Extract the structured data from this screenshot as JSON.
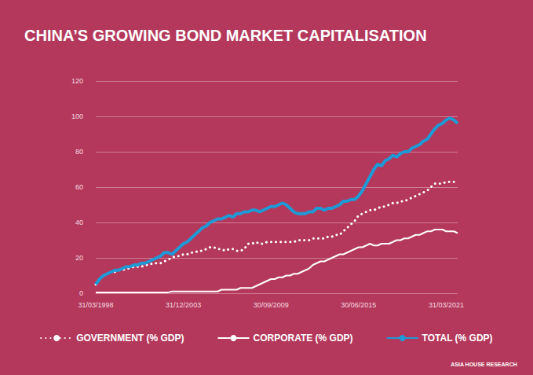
{
  "chart_data": {
    "type": "line",
    "title": "CHINA’S GROWING BOND MARKET CAPITALISATION",
    "annotations": [
      "ASIA HOUSE RESEARCH"
    ],
    "categories": [
      "31/03/1998",
      null,
      null,
      null,
      null,
      null,
      null,
      null,
      null,
      null,
      null,
      null,
      null,
      null,
      null,
      null,
      null,
      null,
      null,
      null,
      null,
      null,
      null,
      "31/12/2003",
      null,
      null,
      null,
      null,
      null,
      null,
      null,
      null,
      null,
      null,
      null,
      null,
      null,
      null,
      null,
      null,
      null,
      null,
      null,
      null,
      null,
      null,
      "30/09/2009",
      null,
      null,
      null,
      null,
      null,
      null,
      null,
      null,
      null,
      null,
      null,
      null,
      null,
      null,
      null,
      null,
      null,
      null,
      null,
      null,
      null,
      null,
      "30/06/2015",
      null,
      null,
      null,
      null,
      null,
      null,
      null,
      null,
      null,
      null,
      null,
      null,
      null,
      null,
      null,
      null,
      null,
      null,
      null,
      null,
      null,
      null,
      "31/03/2021",
      null,
      null,
      null
    ],
    "series": [
      {
        "name": "GOVERNMENT (% GDP)",
        "color": "#ffffff",
        "line_style": "dotted",
        "values": [
          5,
          8,
          10,
          11,
          12,
          12,
          13,
          13,
          14,
          14,
          15,
          15,
          15,
          16,
          16,
          17,
          17,
          17,
          18,
          19,
          20,
          21,
          21,
          22,
          22,
          23,
          23,
          24,
          24,
          25,
          26,
          26,
          25,
          25,
          24,
          25,
          25,
          24,
          24,
          25,
          28,
          28,
          29,
          28,
          28,
          29,
          29,
          29,
          29,
          29,
          29,
          29,
          29,
          30,
          30,
          30,
          30,
          31,
          31,
          31,
          31,
          32,
          32,
          33,
          33,
          35,
          37,
          39,
          41,
          44,
          45,
          46,
          47,
          47,
          48,
          49,
          49,
          50,
          51,
          51,
          52,
          52,
          53,
          54,
          55,
          56,
          57,
          58,
          60,
          62,
          62,
          62,
          63,
          63,
          63,
          63
        ]
      },
      {
        "name": "CORPORATE (% GDP)",
        "color": "#ffffff",
        "line_style": "solid",
        "values": [
          0.5,
          0.5,
          0.5,
          0.5,
          0.5,
          0.5,
          0.5,
          0.5,
          0.5,
          0.5,
          0.5,
          0.5,
          0.5,
          0.5,
          0.5,
          0.5,
          0.5,
          0.5,
          0.5,
          0.5,
          1,
          1,
          1,
          1,
          1,
          1,
          1,
          1,
          1,
          1,
          1,
          1,
          1,
          2,
          2,
          2,
          2,
          2,
          3,
          3,
          3,
          3,
          4,
          5,
          6,
          7,
          8,
          8,
          9,
          9,
          10,
          10,
          11,
          11,
          12,
          13,
          14,
          16,
          17,
          18,
          18,
          19,
          20,
          21,
          22,
          22,
          23,
          24,
          25,
          26,
          26,
          27,
          28,
          27,
          27,
          28,
          28,
          28,
          29,
          30,
          30,
          31,
          31,
          32,
          33,
          33,
          34,
          35,
          35,
          36,
          36,
          36,
          35,
          35,
          35,
          34
        ]
      },
      {
        "name": "TOTAL (% GDP)",
        "color": "#1e9ad6",
        "line_style": "thick",
        "values": [
          5,
          8,
          10,
          11,
          12,
          13,
          13,
          14,
          15,
          15,
          16,
          16,
          17,
          17,
          18,
          19,
          20,
          21,
          23,
          23,
          22,
          24,
          26,
          28,
          29,
          31,
          33,
          35,
          37,
          38,
          40,
          41,
          42,
          42,
          43,
          44,
          43,
          45,
          45,
          46,
          46,
          47,
          47,
          46,
          47,
          48,
          49,
          49,
          50,
          51,
          50,
          48,
          46,
          45,
          45,
          45,
          46,
          46,
          48,
          48,
          47,
          48,
          48,
          49,
          50,
          52,
          52,
          53,
          53,
          55,
          58,
          62,
          66,
          70,
          73,
          72,
          75,
          76,
          78,
          77,
          79,
          80,
          80,
          82,
          83,
          84,
          86,
          87,
          90,
          93,
          95,
          96,
          98,
          99,
          98,
          96
        ]
      }
    ],
    "ylim": [
      0,
      120
    ],
    "yticks": [
      0,
      20,
      40,
      60,
      80,
      100,
      120
    ],
    "grid": true,
    "legend": "bottom"
  }
}
